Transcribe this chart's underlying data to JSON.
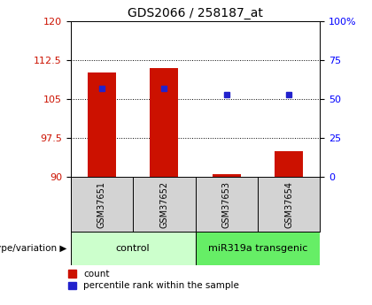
{
  "title": "GDS2066 / 258187_at",
  "samples": [
    "GSM37651",
    "GSM37652",
    "GSM37653",
    "GSM37654"
  ],
  "red_bar_values": [
    110.2,
    111.0,
    90.6,
    95.0
  ],
  "blue_square_values": [
    107.0,
    107.0,
    105.8,
    105.8
  ],
  "ylim_left": [
    90,
    120
  ],
  "yticks_left": [
    90,
    97.5,
    105,
    112.5,
    120
  ],
  "ylim_right": [
    0,
    100
  ],
  "yticks_right": [
    0,
    25,
    50,
    75,
    100
  ],
  "bar_color": "#cc1100",
  "square_color": "#2222cc",
  "bar_width": 0.45,
  "group_labels": [
    "control",
    "miR319a transgenic"
  ],
  "group_colors": [
    "#ccffcc",
    "#66ee66"
  ],
  "genotype_label": "genotype/variation",
  "legend_count": "count",
  "legend_percentile": "percentile rank within the sample",
  "title_fontsize": 10,
  "tick_fontsize": 8,
  "sample_fontsize": 7,
  "group_fontsize": 8,
  "legend_fontsize": 7.5
}
